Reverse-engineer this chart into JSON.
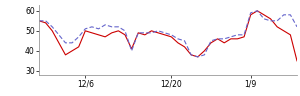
{
  "red_y": [
    55,
    54,
    50,
    44,
    38,
    40,
    42,
    50,
    49,
    48,
    47,
    49,
    50,
    48,
    41,
    49,
    48,
    50,
    49,
    48,
    47,
    44,
    42,
    38,
    37,
    40,
    44,
    46,
    44,
    46,
    46,
    47,
    58,
    60,
    58,
    56,
    52,
    50,
    48,
    35
  ],
  "blue_y": [
    55,
    55,
    52,
    48,
    44,
    44,
    47,
    51,
    52,
    51,
    53,
    52,
    52,
    50,
    40,
    49,
    49,
    49,
    50,
    49,
    48,
    46,
    45,
    38,
    37,
    38,
    45,
    46,
    46,
    47,
    48,
    48,
    59,
    60,
    56,
    55,
    55,
    58,
    58,
    52
  ],
  "xtick_positions": [
    7,
    20,
    32
  ],
  "xtick_labels": [
    "12/6",
    "12/20",
    "1/9"
  ],
  "ytick_positions": [
    30,
    40,
    50,
    60
  ],
  "ytick_labels": [
    "30",
    "40",
    "50",
    "60"
  ],
  "ylim": [
    28,
    63
  ],
  "xlim": [
    0,
    39
  ],
  "red_color": "#cc0000",
  "blue_color": "#6666cc",
  "linewidth": 0.8,
  "bg_color": "#ffffff"
}
